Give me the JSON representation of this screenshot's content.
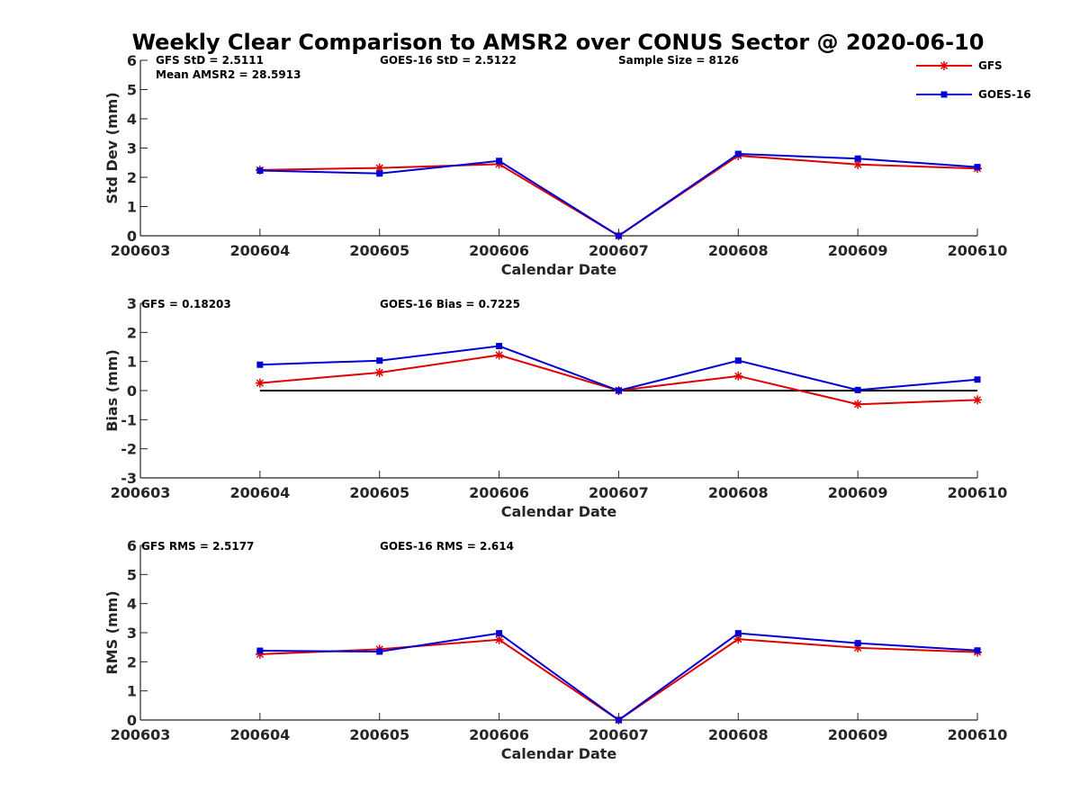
{
  "chart_data": {
    "type": "line",
    "title": "Weekly Clear Comparison to AMSR2 over CONUS Sector @ 2020-06-10",
    "legend": {
      "placement": "top-right",
      "entries": [
        {
          "label": "GFS",
          "color": "#e00000",
          "marker": "asterisk"
        },
        {
          "label": "GOES-16",
          "color": "#0000d6",
          "marker": "square"
        }
      ]
    },
    "x_ticks": [
      "200603",
      "200604",
      "200605",
      "200606",
      "200607",
      "200608",
      "200609",
      "200610"
    ],
    "x": [
      "200604",
      "200605",
      "200606",
      "200607",
      "200608",
      "200609",
      "200610"
    ],
    "panels": [
      {
        "id": "std",
        "ylabel": "Std Dev (mm)",
        "xlabel": "Calendar Date",
        "ylim": [
          0,
          6
        ],
        "yticks": [
          "0",
          "1",
          "2",
          "3",
          "4",
          "5",
          "6"
        ],
        "grid": false,
        "stats": [
          "GFS StD = 2.5111",
          "Mean AMSR2 = 28.5913",
          "GOES-16 StD = 2.5122",
          "Sample Size = 8126"
        ],
        "series": [
          {
            "name": "GFS",
            "values": [
              2.25,
              2.32,
              2.45,
              0.0,
              2.74,
              2.44,
              2.3
            ]
          },
          {
            "name": "GOES-16",
            "values": [
              2.23,
              2.13,
              2.56,
              0.0,
              2.8,
              2.64,
              2.35
            ]
          }
        ]
      },
      {
        "id": "bias",
        "ylabel": "Bias (mm)",
        "xlabel": "Calendar Date",
        "ylim": [
          -3,
          3
        ],
        "yticks": [
          "-3",
          "-2",
          "-1",
          "0",
          "1",
          "2",
          "3"
        ],
        "grid": false,
        "zero_line": true,
        "stats": [
          "GFS = 0.18203",
          "GOES-16 Bias  = 0.7225"
        ],
        "series": [
          {
            "name": "GFS",
            "values": [
              0.26,
              0.62,
              1.22,
              0.0,
              0.5,
              -0.47,
              -0.32
            ]
          },
          {
            "name": "GOES-16",
            "values": [
              0.89,
              1.03,
              1.53,
              0.0,
              1.03,
              0.02,
              0.38
            ]
          }
        ]
      },
      {
        "id": "rms",
        "ylabel": "RMS (mm)",
        "xlabel": "Calendar Date",
        "ylim": [
          0,
          6
        ],
        "yticks": [
          "0",
          "1",
          "2",
          "3",
          "4",
          "5",
          "6"
        ],
        "grid": false,
        "stats": [
          "GFS RMS = 2.5177",
          "GOES-16 RMS = 2.614"
        ],
        "series": [
          {
            "name": "GFS",
            "values": [
              2.26,
              2.43,
              2.76,
              0.0,
              2.78,
              2.48,
              2.33
            ]
          },
          {
            "name": "GOES-16",
            "values": [
              2.38,
              2.35,
              2.98,
              0.0,
              2.98,
              2.64,
              2.39
            ]
          }
        ]
      }
    ]
  }
}
